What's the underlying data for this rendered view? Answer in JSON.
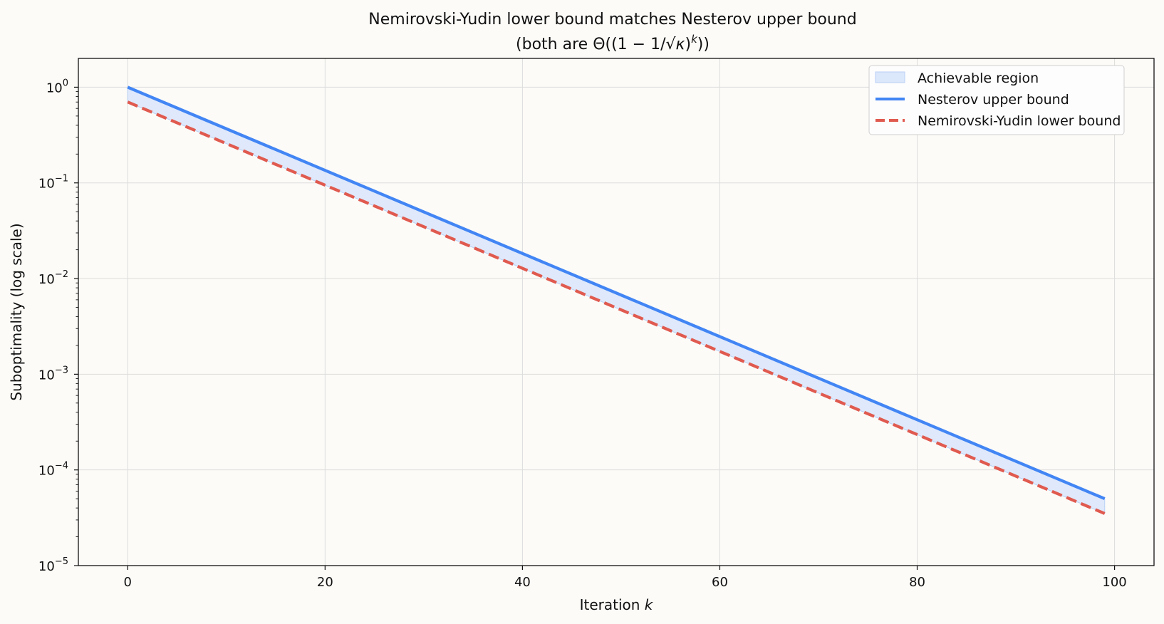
{
  "chart_data": {
    "type": "line",
    "title": "Nemirovski-Yudin lower bound matches Nesterov upper bound",
    "subtitle": "(both are Θ((1 − 1/√κ)^k))",
    "subtitle_parts": {
      "open": "(both are Θ((1 − 1/√",
      "kappa": "κ",
      "close_paren": ")",
      "exponent": "k",
      "end": "))"
    },
    "xlabel": "Iteration",
    "xlabel_var": "k",
    "ylabel": "Suboptimality (log scale)",
    "xlim": [
      -5,
      104
    ],
    "ylim": [
      1e-05,
      2
    ],
    "yscale": "log",
    "grid": true,
    "legend_position": "top-right",
    "x_ticks": [
      0,
      20,
      40,
      60,
      80,
      100
    ],
    "y_ticks": [
      {
        "value": 1,
        "base": "10",
        "exp": "0"
      },
      {
        "value": 0.1,
        "base": "10",
        "exp": "−1"
      },
      {
        "value": 0.01,
        "base": "10",
        "exp": "−2"
      },
      {
        "value": 0.001,
        "base": "10",
        "exp": "−3"
      },
      {
        "value": 0.0001,
        "base": "10",
        "exp": "−4"
      },
      {
        "value": 1e-05,
        "base": "10",
        "exp": "−5"
      }
    ],
    "series": [
      {
        "name": "Nesterov upper bound",
        "x": [
          0,
          99
        ],
        "values": [
          1.0,
          5e-05
        ],
        "color": "#4285f4",
        "style": "solid"
      },
      {
        "name": "Nemirovski-Yudin lower bound",
        "x": [
          0,
          99
        ],
        "values": [
          0.7,
          3.5e-05
        ],
        "color": "#e05a4f",
        "style": "dashed"
      }
    ],
    "fill": {
      "name": "Achievable region",
      "between": [
        "Nemirovski-Yudin lower bound",
        "Nesterov upper bound"
      ],
      "color": "#dbe7fb",
      "edge": "#b9d0f6"
    }
  }
}
